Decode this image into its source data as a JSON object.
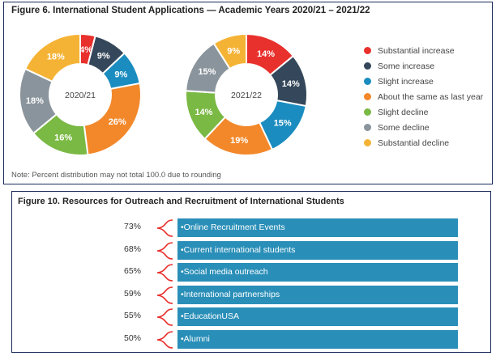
{
  "figure6": {
    "title": "Figure 6. International Student Applications — Academic Years 2020/21 – 2021/22",
    "note": "Note: Percent distribution may not total 100.0 due to rounding"
  },
  "figure10": {
    "title": "Figure 10. Resources for Outreach and Recruitment of International Students"
  },
  "chart_data": [
    {
      "type": "pie",
      "style": "donut",
      "center_label": "2020/21",
      "categories": [
        "Substantial increase",
        "Some increase",
        "Slight increase",
        "About the same as last year",
        "Slight decline",
        "Some decline",
        "Substantial decline"
      ],
      "values": [
        4,
        9,
        9,
        26,
        16,
        18,
        18
      ],
      "labels": [
        "4%",
        "9%",
        "9%",
        "26%",
        "16%",
        "18%",
        "18%"
      ],
      "colors": [
        "#e8302c",
        "#35475a",
        "#1a8cbf",
        "#f3882a",
        "#7ab944",
        "#8a949c",
        "#f5b335"
      ]
    },
    {
      "type": "pie",
      "style": "donut",
      "center_label": "2021/22",
      "categories": [
        "Substantial increase",
        "Some increase",
        "Slight increase",
        "About the same as last year",
        "Slight decline",
        "Some decline",
        "Substantial decline"
      ],
      "values": [
        14,
        14,
        15,
        19,
        14,
        15,
        9
      ],
      "labels": [
        "14%",
        "14%",
        "15%",
        "19%",
        "14%",
        "15%",
        "9%"
      ],
      "colors": [
        "#e8302c",
        "#35475a",
        "#1a8cbf",
        "#f3882a",
        "#7ab944",
        "#8a949c",
        "#f5b335"
      ]
    },
    {
      "type": "bar",
      "orientation": "horizontal",
      "categories": [
        "•Online Recruitment Events",
        "•Current international students",
        "•Social media outreach",
        "•International partnerships",
        "•EducationUSA",
        "•Alumni"
      ],
      "values": [
        73,
        68,
        65,
        59,
        55,
        50
      ],
      "labels": [
        "73%",
        "68%",
        "65%",
        "59%",
        "55%",
        "50%"
      ],
      "bar_color": "#2a8fb8",
      "brace_color": "#e8302c"
    }
  ],
  "legend": {
    "items": [
      {
        "label": "Substantial increase",
        "color": "#e8302c"
      },
      {
        "label": "Some increase",
        "color": "#35475a"
      },
      {
        "label": "Slight increase",
        "color": "#1a8cbf"
      },
      {
        "label": "About the same as last year",
        "color": "#f3882a"
      },
      {
        "label": "Slight decline",
        "color": "#7ab944"
      },
      {
        "label": "Some decline",
        "color": "#8a949c"
      },
      {
        "label": "Substantial decline",
        "color": "#f5b335"
      }
    ]
  }
}
